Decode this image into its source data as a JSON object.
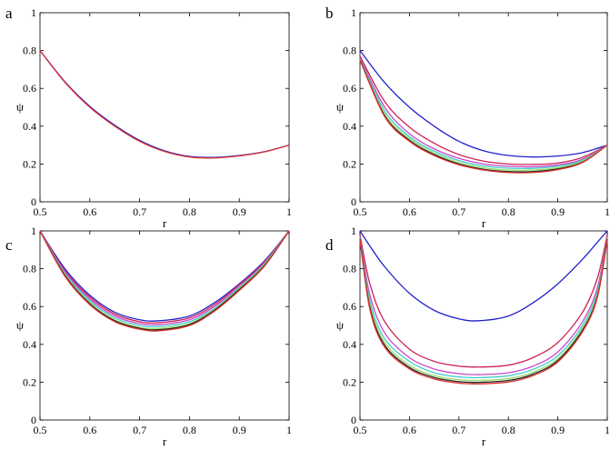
{
  "chart_data": [
    {
      "panel_label": "a",
      "type": "line",
      "xlabel": "r",
      "ylabel": "ψ",
      "xlim": [
        0.5,
        1
      ],
      "ylim": [
        0,
        1
      ],
      "xticks": [
        "0.5",
        "0.6",
        "0.7",
        "0.8",
        "0.9",
        "1"
      ],
      "yticks": [
        "0",
        "0.2",
        "0.4",
        "0.6",
        "0.8",
        "1"
      ],
      "x": [
        0.5,
        0.55,
        0.6,
        0.65,
        0.7,
        0.75,
        0.8,
        0.85,
        0.9,
        0.95,
        1.0
      ],
      "series": [
        {
          "color": "#2222cc",
          "values": [
            0.8,
            0.635,
            0.505,
            0.405,
            0.325,
            0.27,
            0.24,
            0.235,
            0.245,
            0.265,
            0.3
          ]
        },
        {
          "color": "#dd3333",
          "values": [
            0.8,
            0.632,
            0.5,
            0.4,
            0.32,
            0.266,
            0.237,
            0.232,
            0.243,
            0.264,
            0.3
          ]
        }
      ]
    },
    {
      "panel_label": "b",
      "type": "line",
      "xlabel": "r",
      "ylabel": "ψ",
      "xlim": [
        0.5,
        1
      ],
      "ylim": [
        0,
        1
      ],
      "xticks": [
        "0.5",
        "0.6",
        "0.7",
        "0.8",
        "0.9",
        "1"
      ],
      "yticks": [
        "0",
        "0.2",
        "0.4",
        "0.6",
        "0.8",
        "1"
      ],
      "x": [
        0.5,
        0.55,
        0.6,
        0.65,
        0.7,
        0.75,
        0.8,
        0.85,
        0.9,
        0.95,
        1.0
      ],
      "series": [
        {
          "color": "#2222cc",
          "values": [
            0.8,
            0.63,
            0.5,
            0.4,
            0.32,
            0.27,
            0.245,
            0.237,
            0.242,
            0.26,
            0.3
          ]
        },
        {
          "color": "#cc2255",
          "values": [
            0.77,
            0.53,
            0.395,
            0.31,
            0.25,
            0.215,
            0.2,
            0.198,
            0.205,
            0.235,
            0.3
          ]
        },
        {
          "color": "#cc44cc",
          "values": [
            0.76,
            0.5,
            0.36,
            0.28,
            0.23,
            0.2,
            0.188,
            0.186,
            0.195,
            0.225,
            0.3
          ]
        },
        {
          "color": "#44cccc",
          "values": [
            0.755,
            0.48,
            0.345,
            0.268,
            0.218,
            0.19,
            0.178,
            0.177,
            0.188,
            0.22,
            0.3
          ]
        },
        {
          "color": "#99dd66",
          "values": [
            0.75,
            0.465,
            0.335,
            0.258,
            0.208,
            0.18,
            0.168,
            0.168,
            0.18,
            0.215,
            0.3
          ]
        },
        {
          "color": "#222222",
          "values": [
            0.75,
            0.455,
            0.325,
            0.25,
            0.2,
            0.172,
            0.16,
            0.16,
            0.174,
            0.21,
            0.3
          ]
        },
        {
          "color": "#dd3333",
          "values": [
            0.75,
            0.45,
            0.32,
            0.245,
            0.196,
            0.168,
            0.155,
            0.155,
            0.17,
            0.208,
            0.3
          ]
        }
      ]
    },
    {
      "panel_label": "c",
      "type": "line",
      "xlabel": "r",
      "ylabel": "ψ",
      "xlim": [
        0.5,
        1
      ],
      "ylim": [
        0,
        1
      ],
      "xticks": [
        "0.5",
        "0.6",
        "0.7",
        "0.8",
        "0.9",
        "1"
      ],
      "yticks": [
        "0",
        "0.2",
        "0.4",
        "0.6",
        "0.8",
        "1"
      ],
      "x": [
        0.5,
        0.55,
        0.6,
        0.65,
        0.7,
        0.74,
        0.8,
        0.85,
        0.9,
        0.95,
        1.0
      ],
      "series": [
        {
          "color": "#2222cc",
          "values": [
            1.0,
            0.8,
            0.66,
            0.57,
            0.53,
            0.525,
            0.55,
            0.62,
            0.72,
            0.84,
            1.0
          ]
        },
        {
          "color": "#cc2255",
          "values": [
            1.0,
            0.79,
            0.65,
            0.56,
            0.52,
            0.515,
            0.54,
            0.61,
            0.715,
            0.835,
            1.0
          ]
        },
        {
          "color": "#cc44cc",
          "values": [
            1.0,
            0.785,
            0.64,
            0.55,
            0.51,
            0.505,
            0.53,
            0.6,
            0.705,
            0.83,
            1.0
          ]
        },
        {
          "color": "#44cccc",
          "values": [
            1.0,
            0.775,
            0.63,
            0.54,
            0.5,
            0.495,
            0.52,
            0.59,
            0.7,
            0.825,
            1.0
          ]
        },
        {
          "color": "#99dd66",
          "values": [
            1.0,
            0.77,
            0.62,
            0.53,
            0.49,
            0.485,
            0.51,
            0.585,
            0.695,
            0.82,
            1.0
          ]
        },
        {
          "color": "#222222",
          "values": [
            1.0,
            0.765,
            0.615,
            0.525,
            0.485,
            0.478,
            0.505,
            0.58,
            0.69,
            0.815,
            1.0
          ]
        },
        {
          "color": "#dd3333",
          "values": [
            1.0,
            0.76,
            0.61,
            0.52,
            0.48,
            0.472,
            0.5,
            0.575,
            0.685,
            0.812,
            1.0
          ]
        }
      ]
    },
    {
      "panel_label": "d",
      "type": "line",
      "xlabel": "r",
      "ylabel": "ψ",
      "xlim": [
        0.5,
        1
      ],
      "ylim": [
        0,
        1
      ],
      "xticks": [
        "0.5",
        "0.6",
        "0.7",
        "0.8",
        "0.9",
        "1"
      ],
      "yticks": [
        "0",
        "0.2",
        "0.4",
        "0.6",
        "0.8",
        "1"
      ],
      "x": [
        0.5,
        0.52,
        0.55,
        0.6,
        0.65,
        0.7,
        0.74,
        0.8,
        0.85,
        0.9,
        0.95,
        0.98,
        1.0
      ],
      "series": [
        {
          "color": "#2222cc",
          "values": [
            1.0,
            0.92,
            0.81,
            0.67,
            0.58,
            0.535,
            0.525,
            0.55,
            0.62,
            0.72,
            0.85,
            0.94,
            1.0
          ]
        },
        {
          "color": "#cc2255",
          "values": [
            0.98,
            0.72,
            0.52,
            0.375,
            0.31,
            0.285,
            0.28,
            0.29,
            0.33,
            0.41,
            0.57,
            0.75,
            0.98
          ]
        },
        {
          "color": "#cc44cc",
          "values": [
            0.97,
            0.66,
            0.46,
            0.33,
            0.27,
            0.245,
            0.24,
            0.25,
            0.285,
            0.36,
            0.52,
            0.7,
            0.97
          ]
        },
        {
          "color": "#44cccc",
          "values": [
            0.965,
            0.63,
            0.43,
            0.31,
            0.25,
            0.228,
            0.224,
            0.234,
            0.268,
            0.34,
            0.5,
            0.68,
            0.965
          ]
        },
        {
          "color": "#99dd66",
          "values": [
            0.96,
            0.61,
            0.41,
            0.29,
            0.235,
            0.213,
            0.209,
            0.219,
            0.253,
            0.325,
            0.485,
            0.665,
            0.96
          ]
        },
        {
          "color": "#222222",
          "values": [
            0.958,
            0.595,
            0.395,
            0.278,
            0.225,
            0.203,
            0.199,
            0.209,
            0.243,
            0.315,
            0.475,
            0.655,
            0.958
          ]
        },
        {
          "color": "#dd3333",
          "values": [
            0.955,
            0.585,
            0.385,
            0.27,
            0.217,
            0.195,
            0.191,
            0.201,
            0.235,
            0.307,
            0.467,
            0.648,
            0.955
          ]
        }
      ]
    }
  ]
}
